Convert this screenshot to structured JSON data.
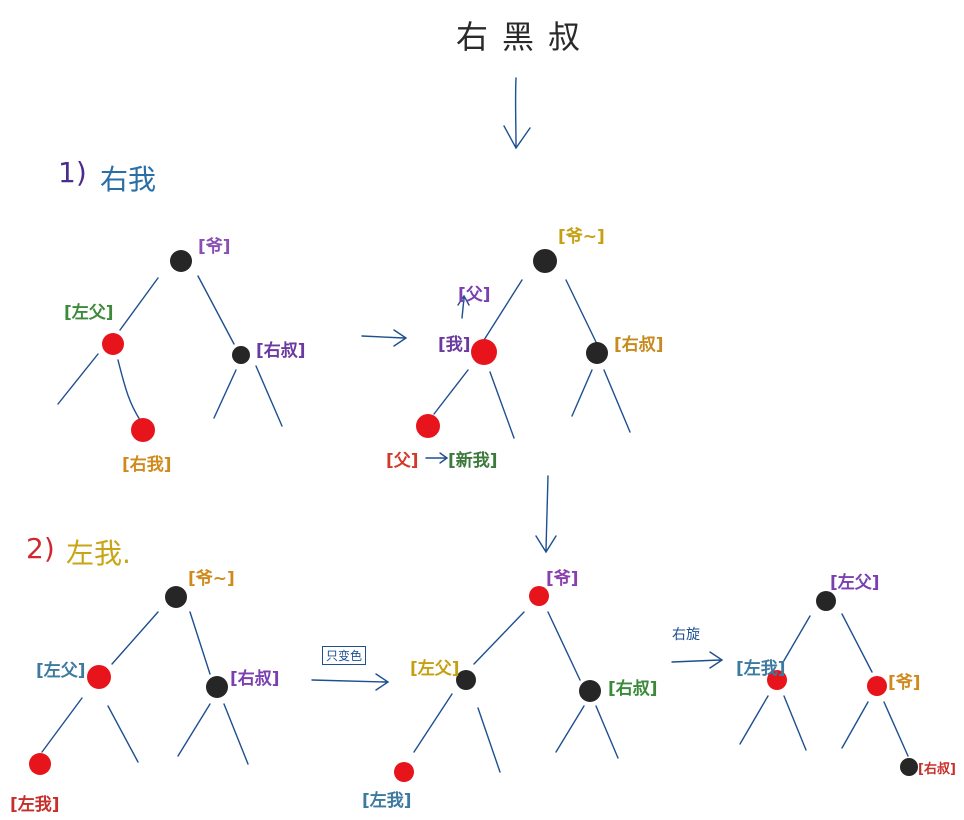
{
  "title": "右黑叔",
  "case1": {
    "num": "1)",
    "text": "右我"
  },
  "case2": {
    "num": "2)",
    "text": "左我."
  },
  "labels": {
    "t1_grand": "[爷]",
    "t1_parent": "[左父]",
    "t1_uncle": "[右叔]",
    "t1_me": "[右我]",
    "t2_grand": "[爷~]",
    "t2_parent_arrow": "[父]",
    "t2_me": "[我]",
    "t2_uncle": "[右叔]",
    "t2_bottom_left": "[父]",
    "t2_bottom_right": "[新我]",
    "t3_grand": "[爷~]",
    "t3_parent": "[左父]",
    "t3_uncle": "[右叔]",
    "t3_me": "[左我]",
    "t4_grand": "[爷]",
    "t4_parent": "[左父]",
    "t4_uncle": "[右叔]",
    "t4_me": "[左我]",
    "t5_top": "[左父]",
    "t5_left": "[左我]",
    "t5_right": "[爷]",
    "t5_uncle": "[右叔]"
  },
  "edge_labels": {
    "recolor": "只变色",
    "rotate": "右旋"
  },
  "colors": {
    "red": "#e8141c",
    "black": "#262626",
    "ink": "#1d4f91"
  }
}
